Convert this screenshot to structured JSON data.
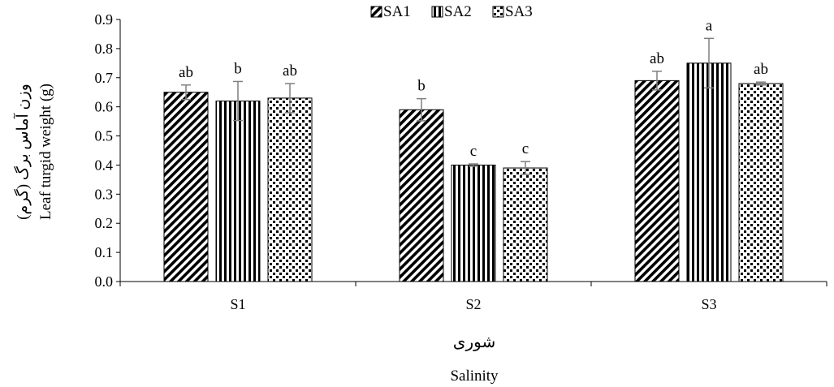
{
  "chart_data": {
    "type": "bar",
    "categories": [
      "S1",
      "S2",
      "S3"
    ],
    "series": [
      {
        "name": "SA1",
        "values": [
          0.65,
          0.59,
          0.69
        ],
        "errors": [
          0.025,
          0.038,
          0.032
        ],
        "letters": [
          "ab",
          "b",
          "ab"
        ],
        "pattern": "diagonal-stripes"
      },
      {
        "name": "SA2",
        "values": [
          0.62,
          0.4,
          0.75
        ],
        "errors": [
          0.067,
          0.004,
          0.085
        ],
        "letters": [
          "b",
          "c",
          "a"
        ],
        "pattern": "vertical-stripes"
      },
      {
        "name": "SA3",
        "values": [
          0.63,
          0.39,
          0.68
        ],
        "errors": [
          0.05,
          0.022,
          0.005
        ],
        "letters": [
          "ab",
          "c",
          "ab"
        ],
        "pattern": "checker-dots"
      }
    ],
    "ylim": [
      0,
      0.9
    ],
    "yticks": [
      "0.0",
      "0.1",
      "0.2",
      "0.3",
      "0.4",
      "0.5",
      "0.6",
      "0.7",
      "0.8",
      "0.9"
    ],
    "ylabel_fa": "وزن آماس برگ (گرم)",
    "ylabel_en": "Leaf turgid weight (g)",
    "xlabel_fa": "شوری",
    "xlabel_en": "Salinity",
    "legend_position": "top-center",
    "grid": false,
    "colors": {
      "bar_fill": "#000000",
      "background": "#ffffff",
      "error_bar": "#7f7f7f"
    }
  }
}
